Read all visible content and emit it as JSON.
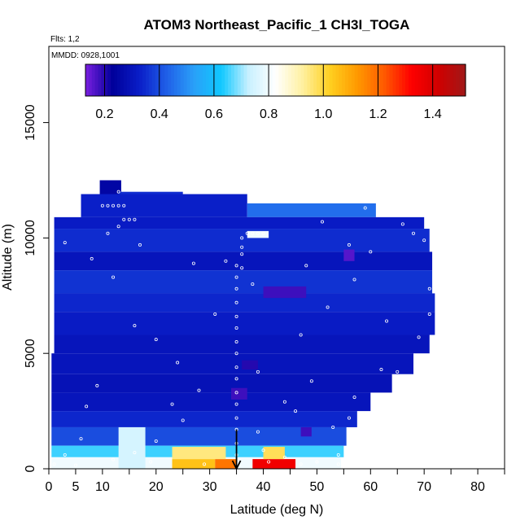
{
  "chart_data": {
    "type": "heatmap",
    "title": "ATOM3 Northeast_Pacific_1 CH3I_TOGA",
    "flights_label": "Flts: 1,2",
    "dates_label": "MMDD: 0928,1001",
    "xlabel": "Latitude (deg N)",
    "ylabel": "Altitude (m)",
    "xlim": [
      0,
      85
    ],
    "ylim": [
      0,
      18300
    ],
    "x_ticks": [
      0,
      5,
      10,
      20,
      30,
      40,
      50,
      60,
      70,
      80
    ],
    "x_minor_ticks": [
      15,
      25,
      35,
      45,
      55,
      65,
      75,
      85
    ],
    "y_ticks": [
      0,
      5000,
      10000,
      15000
    ],
    "colorbar": {
      "min": 0.13,
      "max": 1.52,
      "ticks": [
        0.2,
        0.4,
        0.6,
        0.8,
        1.0,
        1.2,
        1.4
      ],
      "tick_labels": [
        "0.2",
        "0.4",
        "0.6",
        "0.8",
        "1.0",
        "1.2",
        "1.4"
      ],
      "colors": [
        "#7a1fe0",
        "#00009a",
        "#0a1ec8",
        "#2060e8",
        "#2aa0f8",
        "#10c8ff",
        "#c8f0ff",
        "#ffffff",
        "#fff0a0",
        "#ffd020",
        "#ff9a00",
        "#ff5a00",
        "#ff0000",
        "#d00000",
        "#a01818"
      ]
    },
    "marker_latitude": 35,
    "layers": [
      {
        "alt": [
          11700,
          12500
        ],
        "lat": [
          9.5,
          13.5
        ],
        "value": 0.25
      },
      {
        "alt": [
          11900,
          12000
        ],
        "lat": [
          13,
          25
        ],
        "value": 0.35
      },
      {
        "alt": [
          10900,
          11900
        ],
        "lat": [
          6,
          37
        ],
        "value": 0.33
      },
      {
        "alt": [
          10900,
          11500
        ],
        "lat": [
          37,
          61
        ],
        "value": 0.45
      },
      {
        "alt": [
          10400,
          10900
        ],
        "lat": [
          1,
          70
        ],
        "value": 0.32
      },
      {
        "alt": [
          9400,
          10400
        ],
        "lat": [
          1,
          71
        ],
        "value": 0.35
      },
      {
        "alt": [
          8600,
          9400
        ],
        "lat": [
          1,
          71.5
        ],
        "value": 0.3
      },
      {
        "alt": [
          7600,
          8600
        ],
        "lat": [
          1,
          71.5
        ],
        "value": 0.36
      },
      {
        "alt": [
          6800,
          7600
        ],
        "lat": [
          1,
          72
        ],
        "value": 0.34
      },
      {
        "alt": [
          5800,
          6800
        ],
        "lat": [
          1,
          72
        ],
        "value": 0.32
      },
      {
        "alt": [
          5000,
          5800
        ],
        "lat": [
          1,
          71
        ],
        "value": 0.3
      },
      {
        "alt": [
          4100,
          5000
        ],
        "lat": [
          0.5,
          68
        ],
        "value": 0.3
      },
      {
        "alt": [
          3300,
          4100
        ],
        "lat": [
          0.5,
          64
        ],
        "value": 0.29
      },
      {
        "alt": [
          2500,
          3300
        ],
        "lat": [
          0.5,
          60
        ],
        "value": 0.3
      },
      {
        "alt": [
          1800,
          2500
        ],
        "lat": [
          0.5,
          57.5
        ],
        "value": 0.34
      },
      {
        "alt": [
          1000,
          1800
        ],
        "lat": [
          0.5,
          55.5
        ],
        "value": 0.4
      },
      {
        "alt": [
          500,
          1000
        ],
        "lat": [
          0.5,
          55
        ],
        "value": 0.65
      },
      {
        "alt": [
          0,
          500
        ],
        "lat": [
          0.5,
          54.5
        ],
        "value": 0.8
      }
    ],
    "hotspots": [
      {
        "alt": [
          0,
          420
        ],
        "lat": [
          23,
          31
        ],
        "value": 1.05
      },
      {
        "alt": [
          0,
          420
        ],
        "lat": [
          31,
          35
        ],
        "value": 1.18
      },
      {
        "alt": [
          0,
          420
        ],
        "lat": [
          38,
          46
        ],
        "value": 1.35
      },
      {
        "alt": [
          420,
          950
        ],
        "lat": [
          23,
          33
        ],
        "value": 0.95
      },
      {
        "alt": [
          420,
          950
        ],
        "lat": [
          40,
          44
        ],
        "value": 0.98
      },
      {
        "alt": [
          0,
          1800
        ],
        "lat": [
          13,
          18
        ],
        "value": 0.75
      },
      {
        "alt": [
          3000,
          3500
        ],
        "lat": [
          34,
          37
        ],
        "value": 0.18
      },
      {
        "alt": [
          7400,
          7900
        ],
        "lat": [
          40,
          48
        ],
        "value": 0.18
      },
      {
        "alt": [
          9000,
          9500
        ],
        "lat": [
          55,
          57
        ],
        "value": 0.16
      },
      {
        "alt": [
          1400,
          1800
        ],
        "lat": [
          47,
          49
        ],
        "value": 0.18
      },
      {
        "alt": [
          4300,
          4700
        ],
        "lat": [
          36,
          39
        ],
        "value": 0.2
      },
      {
        "alt": [
          10000,
          10300
        ],
        "lat": [
          37,
          41
        ],
        "value": 0.8
      }
    ],
    "sample_points": [
      {
        "lat": 1,
        "alt": 200
      },
      {
        "lat": 3,
        "alt": 600
      },
      {
        "lat": 5,
        "alt": 150
      },
      {
        "lat": 6,
        "alt": 1300
      },
      {
        "lat": 7,
        "alt": 2700
      },
      {
        "lat": 9,
        "alt": 3600
      },
      {
        "lat": 10,
        "alt": 11400
      },
      {
        "lat": 11,
        "alt": 11400
      },
      {
        "lat": 12,
        "alt": 11400
      },
      {
        "lat": 13,
        "alt": 11400
      },
      {
        "lat": 14,
        "alt": 11400
      },
      {
        "lat": 15,
        "alt": 12200
      },
      {
        "lat": 13,
        "alt": 12000
      },
      {
        "lat": 14,
        "alt": 10800
      },
      {
        "lat": 15,
        "alt": 10800
      },
      {
        "lat": 16,
        "alt": 10800
      },
      {
        "lat": 11,
        "alt": 10200
      },
      {
        "lat": 13,
        "alt": 10500
      },
      {
        "lat": 17,
        "alt": 9700
      },
      {
        "lat": 12,
        "alt": 8300
      },
      {
        "lat": 8,
        "alt": 9100
      },
      {
        "lat": 3,
        "alt": 9800
      },
      {
        "lat": 16,
        "alt": 6200
      },
      {
        "lat": 20,
        "alt": 5600
      },
      {
        "lat": 24,
        "alt": 4600
      },
      {
        "lat": 28,
        "alt": 3400
      },
      {
        "lat": 23,
        "alt": 2800
      },
      {
        "lat": 20,
        "alt": 1200
      },
      {
        "lat": 16,
        "alt": 700
      },
      {
        "lat": 12,
        "alt": 400
      },
      {
        "lat": 19,
        "alt": 300
      },
      {
        "lat": 25,
        "alt": 2100
      },
      {
        "lat": 31,
        "alt": 6700
      },
      {
        "lat": 33,
        "alt": 9000
      },
      {
        "lat": 35,
        "alt": 8800
      },
      {
        "lat": 35,
        "alt": 8300
      },
      {
        "lat": 35,
        "alt": 7800
      },
      {
        "lat": 35,
        "alt": 7200
      },
      {
        "lat": 35,
        "alt": 6600
      },
      {
        "lat": 35,
        "alt": 6100
      },
      {
        "lat": 35,
        "alt": 5500
      },
      {
        "lat": 35,
        "alt": 5000
      },
      {
        "lat": 35,
        "alt": 4400
      },
      {
        "lat": 35,
        "alt": 3900
      },
      {
        "lat": 35,
        "alt": 3300
      },
      {
        "lat": 35,
        "alt": 2800
      },
      {
        "lat": 35,
        "alt": 2200
      },
      {
        "lat": 35,
        "alt": 1700
      },
      {
        "lat": 35,
        "alt": 1100
      },
      {
        "lat": 35,
        "alt": 600
      },
      {
        "lat": 36,
        "alt": 9600
      },
      {
        "lat": 36,
        "alt": 10000
      },
      {
        "lat": 36,
        "alt": 9300
      },
      {
        "lat": 36,
        "alt": 8700
      },
      {
        "lat": 37,
        "alt": 10200
      },
      {
        "lat": 38,
        "alt": 10200
      },
      {
        "lat": 39,
        "alt": 10200
      },
      {
        "lat": 40,
        "alt": 10200
      },
      {
        "lat": 38,
        "alt": 8000
      },
      {
        "lat": 39,
        "alt": 4200
      },
      {
        "lat": 39,
        "alt": 1600
      },
      {
        "lat": 40,
        "alt": 800
      },
      {
        "lat": 41,
        "alt": 300
      },
      {
        "lat": 44,
        "alt": 2900
      },
      {
        "lat": 46,
        "alt": 2500
      },
      {
        "lat": 47,
        "alt": 5800
      },
      {
        "lat": 48,
        "alt": 8800
      },
      {
        "lat": 49,
        "alt": 3800
      },
      {
        "lat": 51,
        "alt": 10700
      },
      {
        "lat": 52,
        "alt": 7000
      },
      {
        "lat": 53,
        "alt": 1800
      },
      {
        "lat": 54,
        "alt": 600
      },
      {
        "lat": 54,
        "alt": 200
      },
      {
        "lat": 56,
        "alt": 9700
      },
      {
        "lat": 57,
        "alt": 8200
      },
      {
        "lat": 57,
        "alt": 3100
      },
      {
        "lat": 59,
        "alt": 11300
      },
      {
        "lat": 60,
        "alt": 9400
      },
      {
        "lat": 62,
        "alt": 4300
      },
      {
        "lat": 63,
        "alt": 6400
      },
      {
        "lat": 66,
        "alt": 10600
      },
      {
        "lat": 68,
        "alt": 10200
      },
      {
        "lat": 70,
        "alt": 9900
      },
      {
        "lat": 71,
        "alt": 7800
      },
      {
        "lat": 71,
        "alt": 6700
      },
      {
        "lat": 69,
        "alt": 5700
      },
      {
        "lat": 70,
        "alt": 4600
      },
      {
        "lat": 66,
        "alt": 3200
      },
      {
        "lat": 65,
        "alt": 4200
      },
      {
        "lat": 62,
        "alt": 2600
      },
      {
        "lat": 56,
        "alt": 2200
      },
      {
        "lat": 44,
        "alt": 500
      },
      {
        "lat": 47,
        "alt": 200
      },
      {
        "lat": 50,
        "alt": 300
      },
      {
        "lat": 29,
        "alt": 200
      },
      {
        "lat": 27,
        "alt": 8900
      }
    ]
  }
}
